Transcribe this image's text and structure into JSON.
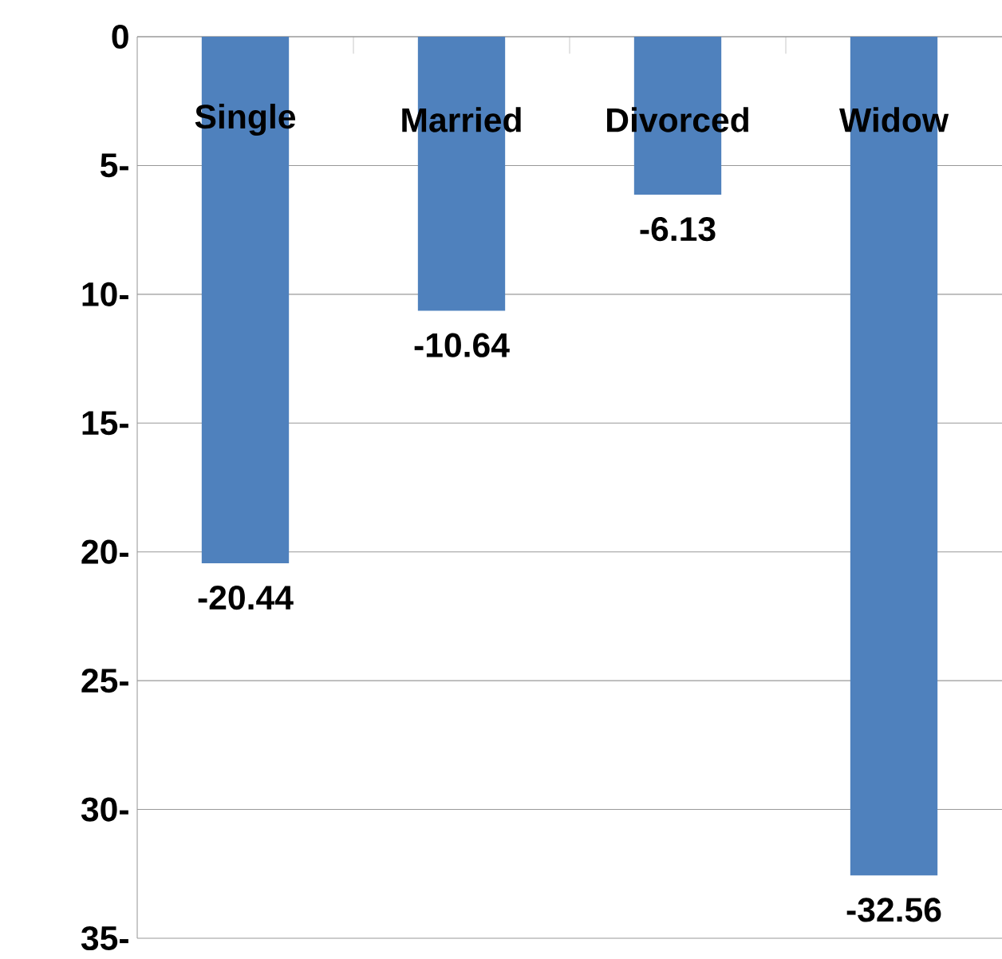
{
  "chart_data": {
    "type": "bar",
    "categories": [
      "Single",
      "Married",
      "Divorced",
      "Widow"
    ],
    "values": [
      -20.44,
      -10.64,
      -6.13,
      -32.56
    ],
    "color": "#4f81bd",
    "ylim": [
      -35,
      0
    ],
    "yticks": [
      0,
      {
        "value": -5,
        "label": "5-"
      },
      {
        "value": -10,
        "label": "10-"
      },
      {
        "value": -15,
        "label": "15-"
      },
      {
        "value": -20,
        "label": "20-"
      },
      {
        "value": -25,
        "label": "25-"
      },
      {
        "value": -30,
        "label": "30-"
      },
      {
        "value": -35,
        "label": "35-"
      }
    ],
    "grid": "y",
    "data_labels": true
  }
}
